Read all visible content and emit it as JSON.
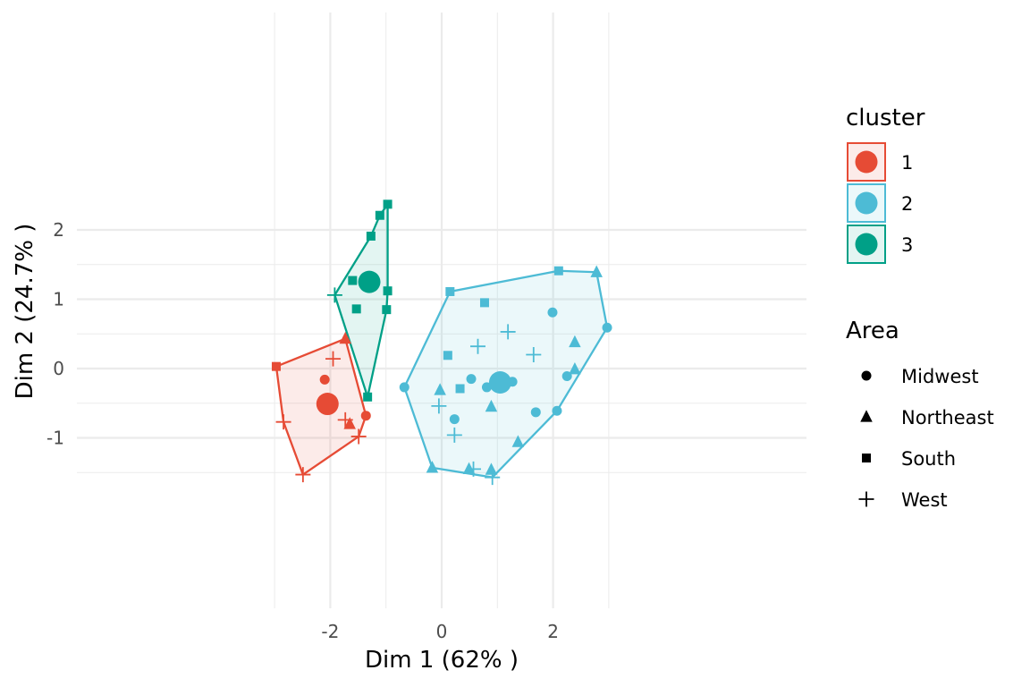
{
  "chart_data": {
    "type": "scatter",
    "xlabel": "Dim 1 (62% )",
    "ylabel": "Dim 2 (24.7% )",
    "xlim": [
      -3.3,
      3.3
    ],
    "ylim": [
      -1.75,
      2.5
    ],
    "x_ticks": [
      -2,
      0,
      2
    ],
    "x_tick_labels": [
      "-2",
      "0",
      "2"
    ],
    "y_ticks": [
      -1,
      0,
      1,
      2
    ],
    "y_tick_labels": [
      "-1",
      "0",
      "1",
      "2"
    ],
    "grid": true,
    "legend_position": "right",
    "cluster_legend": {
      "title": "cluster",
      "entries": [
        {
          "label": "1",
          "color": "#E64B35"
        },
        {
          "label": "2",
          "color": "#4DBBD5"
        },
        {
          "label": "3",
          "color": "#00A087"
        }
      ]
    },
    "shape_legend": {
      "title": "Area",
      "entries": [
        {
          "label": "Midwest",
          "shape": "circle"
        },
        {
          "label": "Northeast",
          "shape": "triangle"
        },
        {
          "label": "South",
          "shape": "square"
        },
        {
          "label": "West",
          "shape": "plus"
        }
      ]
    },
    "clusters": [
      {
        "name": "1",
        "color": "#E64B35",
        "center": [
          -2.05,
          -0.51
        ],
        "hull": [
          [
            -2.97,
            0.03
          ],
          [
            -1.73,
            0.43
          ],
          [
            -1.36,
            -0.68
          ],
          [
            -1.49,
            -0.98
          ],
          [
            -2.49,
            -1.53
          ],
          [
            -2.84,
            -0.77
          ]
        ],
        "points": [
          {
            "x": -2.97,
            "y": 0.03,
            "area": "South"
          },
          {
            "x": -1.73,
            "y": 0.43,
            "area": "Northeast"
          },
          {
            "x": -1.95,
            "y": 0.14,
            "area": "West"
          },
          {
            "x": -2.1,
            "y": -0.16,
            "area": "Midwest"
          },
          {
            "x": -1.73,
            "y": -0.74,
            "area": "West"
          },
          {
            "x": -1.65,
            "y": -0.8,
            "area": "Northeast"
          },
          {
            "x": -1.36,
            "y": -0.68,
            "area": "Midwest"
          },
          {
            "x": -1.49,
            "y": -0.98,
            "area": "West"
          },
          {
            "x": -2.84,
            "y": -0.77,
            "area": "West"
          },
          {
            "x": -2.49,
            "y": -1.53,
            "area": "West"
          }
        ]
      },
      {
        "name": "2",
        "color": "#4DBBD5",
        "center": [
          1.05,
          -0.2
        ],
        "hull": [
          [
            0.15,
            1.11
          ],
          [
            2.1,
            1.41
          ],
          [
            2.78,
            1.39
          ],
          [
            2.97,
            0.59
          ],
          [
            2.07,
            -0.61
          ],
          [
            0.91,
            -1.57
          ],
          [
            -0.17,
            -1.43
          ],
          [
            -0.67,
            -0.27
          ]
        ],
        "points": [
          {
            "x": 0.15,
            "y": 1.11,
            "area": "South"
          },
          {
            "x": 2.1,
            "y": 1.41,
            "area": "South"
          },
          {
            "x": 2.78,
            "y": 1.39,
            "area": "Northeast"
          },
          {
            "x": 2.97,
            "y": 0.59,
            "area": "Midwest"
          },
          {
            "x": 0.77,
            "y": 0.95,
            "area": "South"
          },
          {
            "x": 1.99,
            "y": 0.81,
            "area": "Midwest"
          },
          {
            "x": 1.19,
            "y": 0.53,
            "area": "West"
          },
          {
            "x": 2.39,
            "y": 0.38,
            "area": "Northeast"
          },
          {
            "x": 0.65,
            "y": 0.32,
            "area": "West"
          },
          {
            "x": 1.65,
            "y": 0.2,
            "area": "West"
          },
          {
            "x": 0.11,
            "y": 0.19,
            "area": "South"
          },
          {
            "x": 2.39,
            "y": -0.01,
            "area": "Northeast"
          },
          {
            "x": 2.25,
            "y": -0.11,
            "area": "Midwest"
          },
          {
            "x": 0.53,
            "y": -0.15,
            "area": "Midwest"
          },
          {
            "x": 1.27,
            "y": -0.19,
            "area": "Midwest"
          },
          {
            "x": -0.67,
            "y": -0.27,
            "area": "Midwest"
          },
          {
            "x": 0.81,
            "y": -0.27,
            "area": "Midwest"
          },
          {
            "x": 0.33,
            "y": -0.29,
            "area": "South"
          },
          {
            "x": -0.03,
            "y": -0.31,
            "area": "Northeast"
          },
          {
            "x": -0.05,
            "y": -0.54,
            "area": "West"
          },
          {
            "x": 0.89,
            "y": -0.55,
            "area": "Northeast"
          },
          {
            "x": 2.07,
            "y": -0.61,
            "area": "Midwest"
          },
          {
            "x": 1.69,
            "y": -0.63,
            "area": "Midwest"
          },
          {
            "x": 0.23,
            "y": -0.73,
            "area": "Midwest"
          },
          {
            "x": 0.23,
            "y": -0.96,
            "area": "West"
          },
          {
            "x": 1.37,
            "y": -1.06,
            "area": "Northeast"
          },
          {
            "x": -0.17,
            "y": -1.43,
            "area": "Northeast"
          },
          {
            "x": 0.49,
            "y": -1.45,
            "area": "Northeast"
          },
          {
            "x": 0.57,
            "y": -1.45,
            "area": "West"
          },
          {
            "x": 0.89,
            "y": -1.46,
            "area": "Northeast"
          },
          {
            "x": 0.91,
            "y": -1.57,
            "area": "West"
          }
        ]
      },
      {
        "name": "3",
        "color": "#00A087",
        "center": [
          -1.3,
          1.25
        ],
        "hull": [
          [
            -0.97,
            2.37
          ],
          [
            -0.97,
            1.12
          ],
          [
            -0.99,
            0.85
          ],
          [
            -1.33,
            -0.41
          ],
          [
            -1.92,
            1.06
          ],
          [
            -1.27,
            1.91
          ],
          [
            -1.11,
            2.21
          ]
        ],
        "points": [
          {
            "x": -0.97,
            "y": 2.37,
            "area": "South"
          },
          {
            "x": -1.11,
            "y": 2.21,
            "area": "South"
          },
          {
            "x": -1.27,
            "y": 1.91,
            "area": "South"
          },
          {
            "x": -1.6,
            "y": 1.27,
            "area": "South"
          },
          {
            "x": -0.97,
            "y": 1.12,
            "area": "South"
          },
          {
            "x": -1.92,
            "y": 1.06,
            "area": "West"
          },
          {
            "x": -1.53,
            "y": 0.86,
            "area": "South"
          },
          {
            "x": -0.99,
            "y": 0.85,
            "area": "South"
          },
          {
            "x": -1.33,
            "y": -0.41,
            "area": "South"
          }
        ]
      }
    ]
  }
}
